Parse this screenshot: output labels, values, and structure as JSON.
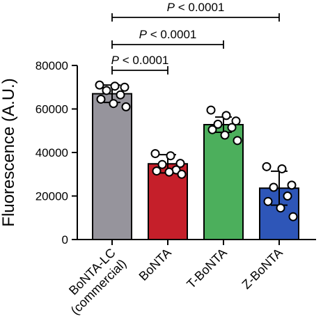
{
  "chart_data": {
    "type": "bar",
    "xlabel": "",
    "ylabel": "Fluorescence (A.U.)",
    "ylim": [
      0,
      80000
    ],
    "yticks": [
      0,
      20000,
      40000,
      60000,
      80000
    ],
    "ytick_labels": [
      "0",
      "20000",
      "40000",
      "60000",
      "80000"
    ],
    "categories": [
      {
        "label_lines": [
          "BoNTA-LC",
          "(commercial)"
        ],
        "color": "#96949c",
        "mean": 67000,
        "sd": 4000,
        "points": [
          71000,
          70500,
          70000,
          68500,
          66500,
          64500,
          62500,
          61000
        ]
      },
      {
        "label_lines": [
          "BoNTA"
        ],
        "color": "#c51f2a",
        "mean": 34800,
        "sd": 4200,
        "points": [
          39500,
          38500,
          35000,
          34500,
          32000,
          31500,
          31000,
          30000
        ]
      },
      {
        "label_lines": [
          "T-BoNTA"
        ],
        "color": "#4caf5c",
        "mean": 52800,
        "sd": 3500,
        "points": [
          59500,
          57000,
          54500,
          53000,
          51500,
          50500,
          48000,
          45500
        ]
      },
      {
        "label_lines": [
          "Z-BoNTA"
        ],
        "color": "#2e56b8",
        "mean": 23600,
        "sd": 7800,
        "points": [
          33500,
          32500,
          25000,
          24000,
          20000,
          17500,
          14500,
          10500
        ]
      }
    ],
    "significance": [
      {
        "from": 0,
        "to": 1,
        "p_italic": "P",
        "p_rest": " < 0.0001"
      },
      {
        "from": 0,
        "to": 2,
        "p_italic": "P",
        "p_rest": " < 0.0001"
      },
      {
        "from": 0,
        "to": 3,
        "p_italic": "P",
        "p_rest": " < 0.0001"
      }
    ]
  }
}
